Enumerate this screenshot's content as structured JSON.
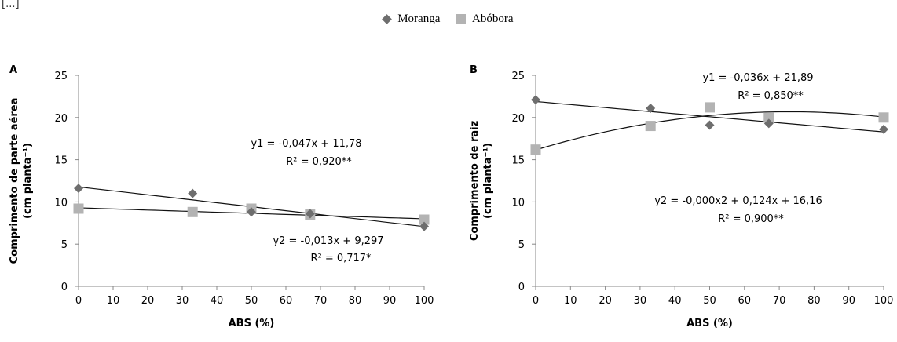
{
  "header_fragment": "[...]",
  "legend": [
    {
      "name": "Moranga",
      "marker": "diamond",
      "color": "#6e6e6e"
    },
    {
      "name": "Abóbora",
      "marker": "square",
      "color": "#b3b3b3"
    }
  ],
  "chart_data": [
    {
      "type": "scatter",
      "panel": "A",
      "ylabel_line1": "Comprimento de parte aérea",
      "ylabel_line2": "(cm planta⁻¹)",
      "xlabel": "ABS (%)",
      "xlim": [
        0,
        100
      ],
      "ylim": [
        0,
        25
      ],
      "xticks": [
        0,
        10,
        20,
        30,
        40,
        50,
        60,
        70,
        80,
        90,
        100
      ],
      "yticks": [
        0,
        5,
        10,
        15,
        20,
        25
      ],
      "x": [
        0,
        33,
        50,
        67,
        100
      ],
      "series": [
        {
          "name": "Moranga",
          "values": [
            11.6,
            11.0,
            8.8,
            8.6,
            7.1
          ],
          "fit": {
            "type": "linear",
            "a": -0.047,
            "b": 11.78
          }
        },
        {
          "name": "Abóbora",
          "values": [
            9.2,
            8.8,
            9.2,
            8.5,
            7.9
          ],
          "fit": {
            "type": "linear",
            "a": -0.013,
            "b": 9.297
          }
        }
      ],
      "annotations": [
        {
          "eq": "y1 = -0,047x + 11,78",
          "r2": "R² = 0,920**"
        },
        {
          "eq": "y2 = -0,013x + 9,297",
          "r2": "R² = 0,717*"
        }
      ]
    },
    {
      "type": "scatter",
      "panel": "B",
      "ylabel_line1": "Comprimento de raiz",
      "ylabel_line2": "(cm planta⁻¹)",
      "xlabel": "ABS (%)",
      "xlim": [
        0,
        100
      ],
      "ylim": [
        0,
        25
      ],
      "xticks": [
        0,
        10,
        20,
        30,
        40,
        50,
        60,
        70,
        80,
        90,
        100
      ],
      "yticks": [
        0,
        5,
        10,
        15,
        20,
        25
      ],
      "x": [
        0,
        33,
        50,
        67,
        100
      ],
      "series": [
        {
          "name": "Moranga",
          "values": [
            22.1,
            21.1,
            19.1,
            19.3,
            18.6
          ],
          "fit": {
            "type": "linear",
            "a": -0.036,
            "b": 21.89
          }
        },
        {
          "name": "Abóbora",
          "values": [
            16.2,
            19.0,
            21.2,
            20.0,
            20.0
          ],
          "fit": {
            "type": "quadratic",
            "a": -0.00085,
            "b": 0.124,
            "c": 16.16
          }
        }
      ],
      "annotations": [
        {
          "eq": "y1 = -0,036x + 21,89",
          "r2": "R² = 0,850**"
        },
        {
          "eq": "y2 = -0,000x2 + 0,124x + 16,16",
          "r2": "R² = 0,900**"
        }
      ]
    }
  ]
}
